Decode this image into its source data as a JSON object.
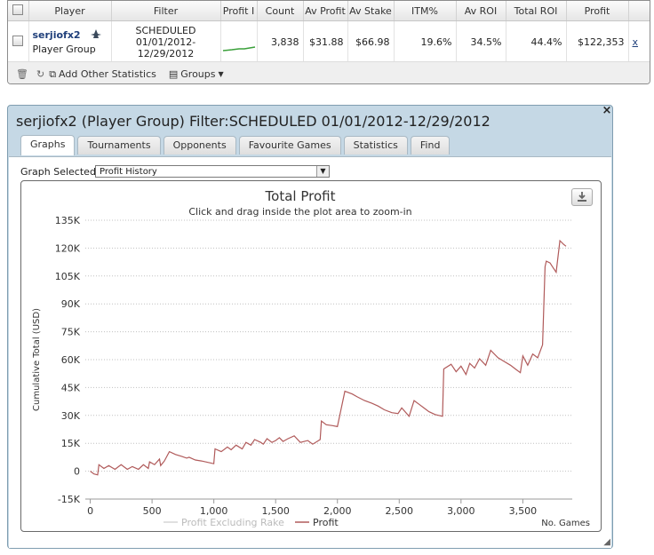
{
  "stats_table": {
    "columns": [
      "Player",
      "Filter",
      "Profit I",
      "Count",
      "Av Profit",
      "Av Stake",
      "ITM%",
      "Av ROI",
      "Total ROI",
      "Profit"
    ],
    "row": {
      "player_name": "serjiofx2",
      "player_type": "Player Group",
      "filter_line1": "SCHEDULED",
      "filter_line2": "01/01/2012-",
      "filter_line3": "12/29/2012",
      "count": "3,838",
      "av_profit": "$31.88",
      "av_stake": "$66.98",
      "itm": "19.6%",
      "av_roi": "34.5%",
      "total_roi": "44.4%",
      "profit": "$122,353",
      "trailing": "x"
    },
    "toolbar": {
      "add_label": "Add Other Statistics",
      "groups_label": "Groups"
    }
  },
  "dialog": {
    "title": "serjiofx2 (Player Group) Filter:SCHEDULED 01/01/2012-12/29/2012",
    "close": "×",
    "tabs": [
      "Graphs",
      "Tournaments",
      "Opponents",
      "Favourite Games",
      "Statistics",
      "Find"
    ],
    "active_tab": "Graphs",
    "graph_selected_label": "Graph Selected:",
    "graph_selected_value": "Profit History"
  },
  "chart_data": {
    "type": "line",
    "title": "Total Profit",
    "subtitle": "Click and drag inside the plot area to zoom-in",
    "xlabel": "No. Games",
    "ylabel": "Cumulative Total (USD)",
    "xlim": [
      -40,
      3900
    ],
    "ylim": [
      -15000,
      135000
    ],
    "x_ticks": [
      0,
      500,
      1000,
      1500,
      2000,
      2500,
      3000,
      3500
    ],
    "x_tick_labels": [
      "0",
      "500",
      "1,000",
      "1,500",
      "2,000",
      "2,500",
      "3,000",
      "3,500"
    ],
    "y_ticks": [
      -15000,
      0,
      15000,
      30000,
      45000,
      60000,
      75000,
      90000,
      105000,
      120000,
      135000
    ],
    "y_tick_labels": [
      "-15K",
      "0",
      "15K",
      "30K",
      "45K",
      "60K",
      "75K",
      "90K",
      "105K",
      "120K",
      "135K"
    ],
    "grid": true,
    "legend_position": "bottom-center",
    "series": [
      {
        "name": "Profit Excluding Rake",
        "color": "#d6d6d6",
        "x": [],
        "y": []
      },
      {
        "name": "Profit",
        "color": "#b05a5a",
        "x": [
          0,
          30,
          60,
          70,
          110,
          150,
          200,
          250,
          300,
          340,
          390,
          430,
          470,
          480,
          520,
          560,
          570,
          600,
          640,
          690,
          740,
          780,
          800,
          850,
          900,
          1000,
          1010,
          1060,
          1110,
          1140,
          1180,
          1230,
          1260,
          1300,
          1330,
          1380,
          1400,
          1430,
          1470,
          1500,
          1530,
          1560,
          1600,
          1650,
          1700,
          1760,
          1800,
          1860,
          1870,
          1910,
          1960,
          2000,
          2060,
          2120,
          2160,
          2220,
          2280,
          2330,
          2380,
          2440,
          2490,
          2520,
          2580,
          2620,
          2660,
          2700,
          2740,
          2790,
          2850,
          2860,
          2920,
          2960,
          3000,
          3040,
          3070,
          3110,
          3150,
          3200,
          3240,
          3300,
          3350,
          3400,
          3440,
          3480,
          3500,
          3540,
          3580,
          3620,
          3660,
          3680,
          3690,
          3720,
          3740,
          3770,
          3800,
          3830,
          3850
        ],
        "y": [
          0,
          -1500,
          -2000,
          3500,
          1500,
          3000,
          1000,
          3500,
          1000,
          2500,
          1000,
          3500,
          1500,
          5000,
          3500,
          6500,
          3000,
          5500,
          10500,
          9000,
          8000,
          7000,
          7500,
          6000,
          5500,
          4000,
          12000,
          10500,
          13000,
          11500,
          14000,
          12000,
          15500,
          14000,
          17000,
          15500,
          14500,
          17500,
          15500,
          16500,
          18000,
          16000,
          17500,
          19000,
          15500,
          16500,
          14500,
          17000,
          27000,
          25000,
          24500,
          24000,
          43000,
          41500,
          40000,
          38000,
          36500,
          35000,
          33000,
          31500,
          31000,
          34000,
          29500,
          38000,
          36000,
          34000,
          32000,
          30500,
          29500,
          55000,
          57500,
          53500,
          56500,
          52000,
          58000,
          55500,
          60500,
          57000,
          65000,
          61000,
          59000,
          57000,
          55000,
          53000,
          62000,
          57000,
          63000,
          61000,
          68000,
          110000,
          113000,
          112000,
          110000,
          107000,
          124000,
          122000,
          121000
        ]
      }
    ]
  }
}
